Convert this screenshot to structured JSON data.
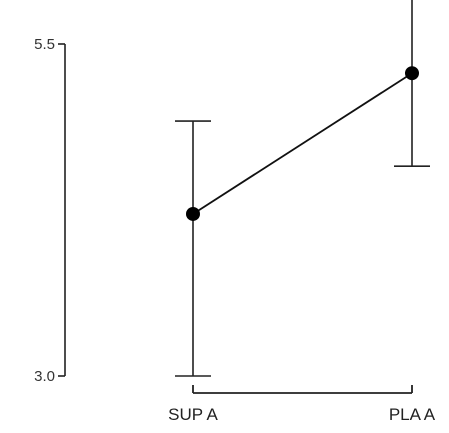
{
  "chart_data": {
    "type": "line",
    "categories": [
      "SUP A",
      "PLA A"
    ],
    "series": [
      {
        "values": [
          4.22,
          5.28
        ],
        "err_low": [
          3.0,
          4.58
        ],
        "err_high": [
          4.92,
          5.98
        ]
      }
    ],
    "yticks": [
      3.0,
      5.5
    ],
    "ytick_labels": [
      "3.0",
      "5.5"
    ],
    "ylim": [
      3.0,
      5.5
    ],
    "annotations": [
      {
        "category": "PLA A",
        "text": "*"
      }
    ],
    "grid": false,
    "legend": "none",
    "colors": {
      "line": "#111111",
      "marker": "#000000",
      "axis": "#222222"
    }
  }
}
